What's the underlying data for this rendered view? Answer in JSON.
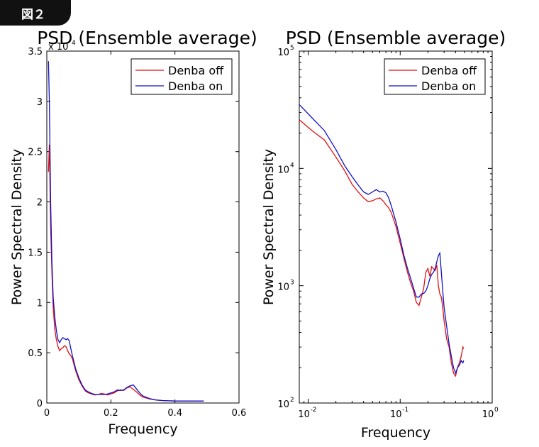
{
  "badge": "図２",
  "colors": {
    "off": "#e01010",
    "on": "#1010c8"
  },
  "chart_data": [
    {
      "type": "line",
      "title": "PSD (Ensemble average)",
      "xlabel": "Frequency",
      "ylabel": "Power Spectral Density",
      "xlim": [
        0,
        0.6
      ],
      "ylim": [
        0,
        35000
      ],
      "yscale": "linear",
      "y_multiplier": "x 10",
      "y_multiplier_exp": "4",
      "xticks": [
        "0",
        "0.2",
        "0.4",
        "0.6"
      ],
      "yticks": [
        "0",
        "0.5",
        "1",
        "1.5",
        "2",
        "2.5",
        "3",
        "3.5"
      ],
      "legend": {
        "position": "top-right",
        "entries": [
          "Denba off",
          "Denba on"
        ]
      },
      "series": [
        {
          "name": "Denba off",
          "x": [
            0.005,
            0.008,
            0.012,
            0.016,
            0.02,
            0.025,
            0.03,
            0.035,
            0.04,
            0.045,
            0.05,
            0.055,
            0.06,
            0.065,
            0.07,
            0.075,
            0.08,
            0.09,
            0.1,
            0.11,
            0.12,
            0.13,
            0.14,
            0.15,
            0.16,
            0.17,
            0.18,
            0.19,
            0.2,
            0.21,
            0.22,
            0.23,
            0.24,
            0.25,
            0.26,
            0.27,
            0.28,
            0.29,
            0.3,
            0.32,
            0.34,
            0.36,
            0.38,
            0.4,
            0.42,
            0.44,
            0.46,
            0.48,
            0.49
          ],
          "y": [
            23000,
            25700,
            17500,
            13000,
            9500,
            7300,
            6300,
            5600,
            5200,
            5400,
            5500,
            5700,
            5600,
            5200,
            4900,
            4700,
            4400,
            3200,
            2300,
            1700,
            1200,
            1000,
            900,
            800,
            850,
            950,
            900,
            800,
            900,
            1000,
            1200,
            1300,
            1250,
            1500,
            1600,
            1350,
            1100,
            800,
            600,
            400,
            300,
            250,
            220,
            200,
            200,
            200,
            200,
            200,
            200
          ]
        },
        {
          "name": "Denba on",
          "x": [
            0.005,
            0.008,
            0.012,
            0.016,
            0.02,
            0.025,
            0.03,
            0.035,
            0.04,
            0.045,
            0.05,
            0.055,
            0.06,
            0.065,
            0.07,
            0.075,
            0.08,
            0.09,
            0.1,
            0.11,
            0.12,
            0.13,
            0.14,
            0.15,
            0.16,
            0.17,
            0.18,
            0.19,
            0.2,
            0.21,
            0.22,
            0.23,
            0.24,
            0.25,
            0.26,
            0.27,
            0.28,
            0.29,
            0.3,
            0.32,
            0.34,
            0.36,
            0.38,
            0.4,
            0.42,
            0.44,
            0.46,
            0.48,
            0.49
          ],
          "y": [
            34000,
            30000,
            20000,
            14000,
            10500,
            8500,
            7200,
            6300,
            6000,
            6300,
            6500,
            6400,
            6300,
            6400,
            6200,
            5400,
            4700,
            3400,
            2500,
            1800,
            1300,
            1100,
            950,
            850,
            850,
            850,
            850,
            900,
            1000,
            1100,
            1300,
            1250,
            1300,
            1550,
            1700,
            1800,
            1400,
            1000,
            700,
            450,
            300,
            250,
            220,
            200,
            200,
            200,
            200,
            200,
            200
          ]
        }
      ]
    },
    {
      "type": "line",
      "title": "PSD (Ensemble average)",
      "xlabel": "Frequency",
      "ylabel": "Power Spectral Density",
      "xlim": [
        0.008,
        1
      ],
      "ylim": [
        100,
        100000
      ],
      "xscale": "log",
      "yscale": "log",
      "xticks": [
        {
          "base": "10",
          "exp": "-2",
          "v": 0.01
        },
        {
          "base": "10",
          "exp": "-1",
          "v": 0.1
        },
        {
          "base": "10",
          "exp": "0",
          "v": 1
        }
      ],
      "yticks": [
        {
          "base": "10",
          "exp": "2",
          "v": 100
        },
        {
          "base": "10",
          "exp": "3",
          "v": 1000
        },
        {
          "base": "10",
          "exp": "4",
          "v": 10000
        },
        {
          "base": "10",
          "exp": "5",
          "v": 100000
        }
      ],
      "legend": {
        "position": "top-right",
        "entries": [
          "Denba off",
          "Denba on"
        ]
      },
      "series": [
        {
          "name": "Denba off",
          "x": [
            0.008,
            0.011,
            0.015,
            0.02,
            0.025,
            0.03,
            0.035,
            0.04,
            0.045,
            0.05,
            0.055,
            0.06,
            0.065,
            0.07,
            0.075,
            0.08,
            0.09,
            0.1,
            0.11,
            0.12,
            0.13,
            0.14,
            0.15,
            0.16,
            0.17,
            0.18,
            0.19,
            0.2,
            0.21,
            0.22,
            0.23,
            0.24,
            0.25,
            0.26,
            0.27,
            0.28,
            0.29,
            0.3,
            0.32,
            0.34,
            0.36,
            0.38,
            0.4,
            0.42,
            0.44,
            0.46,
            0.48,
            0.49
          ],
          "y": [
            26000,
            21000,
            17500,
            12500,
            9500,
            7300,
            6300,
            5600,
            5200,
            5300,
            5500,
            5600,
            5300,
            4900,
            4600,
            4200,
            3200,
            2300,
            1700,
            1300,
            1050,
            900,
            720,
            680,
            800,
            950,
            1300,
            1400,
            1200,
            1450,
            1400,
            1350,
            1500,
            1000,
            850,
            800,
            650,
            500,
            350,
            300,
            220,
            180,
            170,
            200,
            220,
            250,
            300,
            290
          ]
        },
        {
          "name": "Denba on",
          "x": [
            0.008,
            0.011,
            0.015,
            0.02,
            0.025,
            0.03,
            0.035,
            0.04,
            0.045,
            0.05,
            0.055,
            0.06,
            0.065,
            0.07,
            0.075,
            0.08,
            0.09,
            0.1,
            0.11,
            0.12,
            0.13,
            0.14,
            0.15,
            0.16,
            0.17,
            0.18,
            0.19,
            0.2,
            0.21,
            0.22,
            0.23,
            0.24,
            0.25,
            0.26,
            0.27,
            0.28,
            0.29,
            0.3,
            0.32,
            0.34,
            0.36,
            0.38,
            0.4,
            0.42,
            0.44,
            0.46,
            0.48,
            0.49
          ],
          "y": [
            35000,
            27000,
            21000,
            14500,
            10500,
            8500,
            7200,
            6300,
            6000,
            6300,
            6600,
            6300,
            6400,
            6200,
            5600,
            4800,
            3500,
            2500,
            1800,
            1400,
            1150,
            950,
            800,
            800,
            850,
            860,
            900,
            1000,
            1150,
            1250,
            1300,
            1400,
            1600,
            1800,
            1900,
            1300,
            900,
            650,
            450,
            320,
            250,
            200,
            180,
            200,
            210,
            230,
            220,
            230
          ]
        }
      ]
    }
  ]
}
